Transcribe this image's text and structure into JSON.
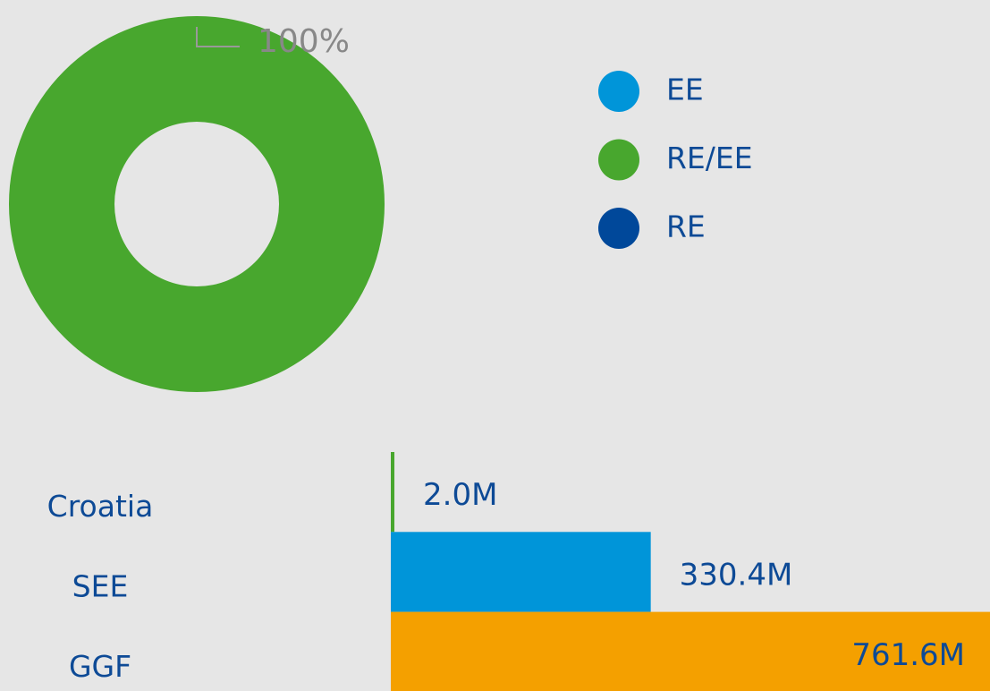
{
  "chart_data": [
    {
      "type": "donut",
      "categories": [
        "EE",
        "RE/EE",
        "RE"
      ],
      "values": [
        0,
        100,
        0
      ],
      "value_labels": [
        null,
        "100%",
        null
      ],
      "colors": [
        "#0095d9",
        "#48a72e",
        "#00489a"
      ]
    },
    {
      "type": "hbar",
      "categories": [
        "Croatia",
        "SEE",
        "GGF"
      ],
      "values": [
        2.0,
        330.4,
        761.6
      ],
      "value_labels": [
        "2.0M",
        "330.4M",
        "761.6M"
      ],
      "colors": [
        "#48a72e",
        "#0095d9",
        "#f4a000"
      ]
    }
  ]
}
